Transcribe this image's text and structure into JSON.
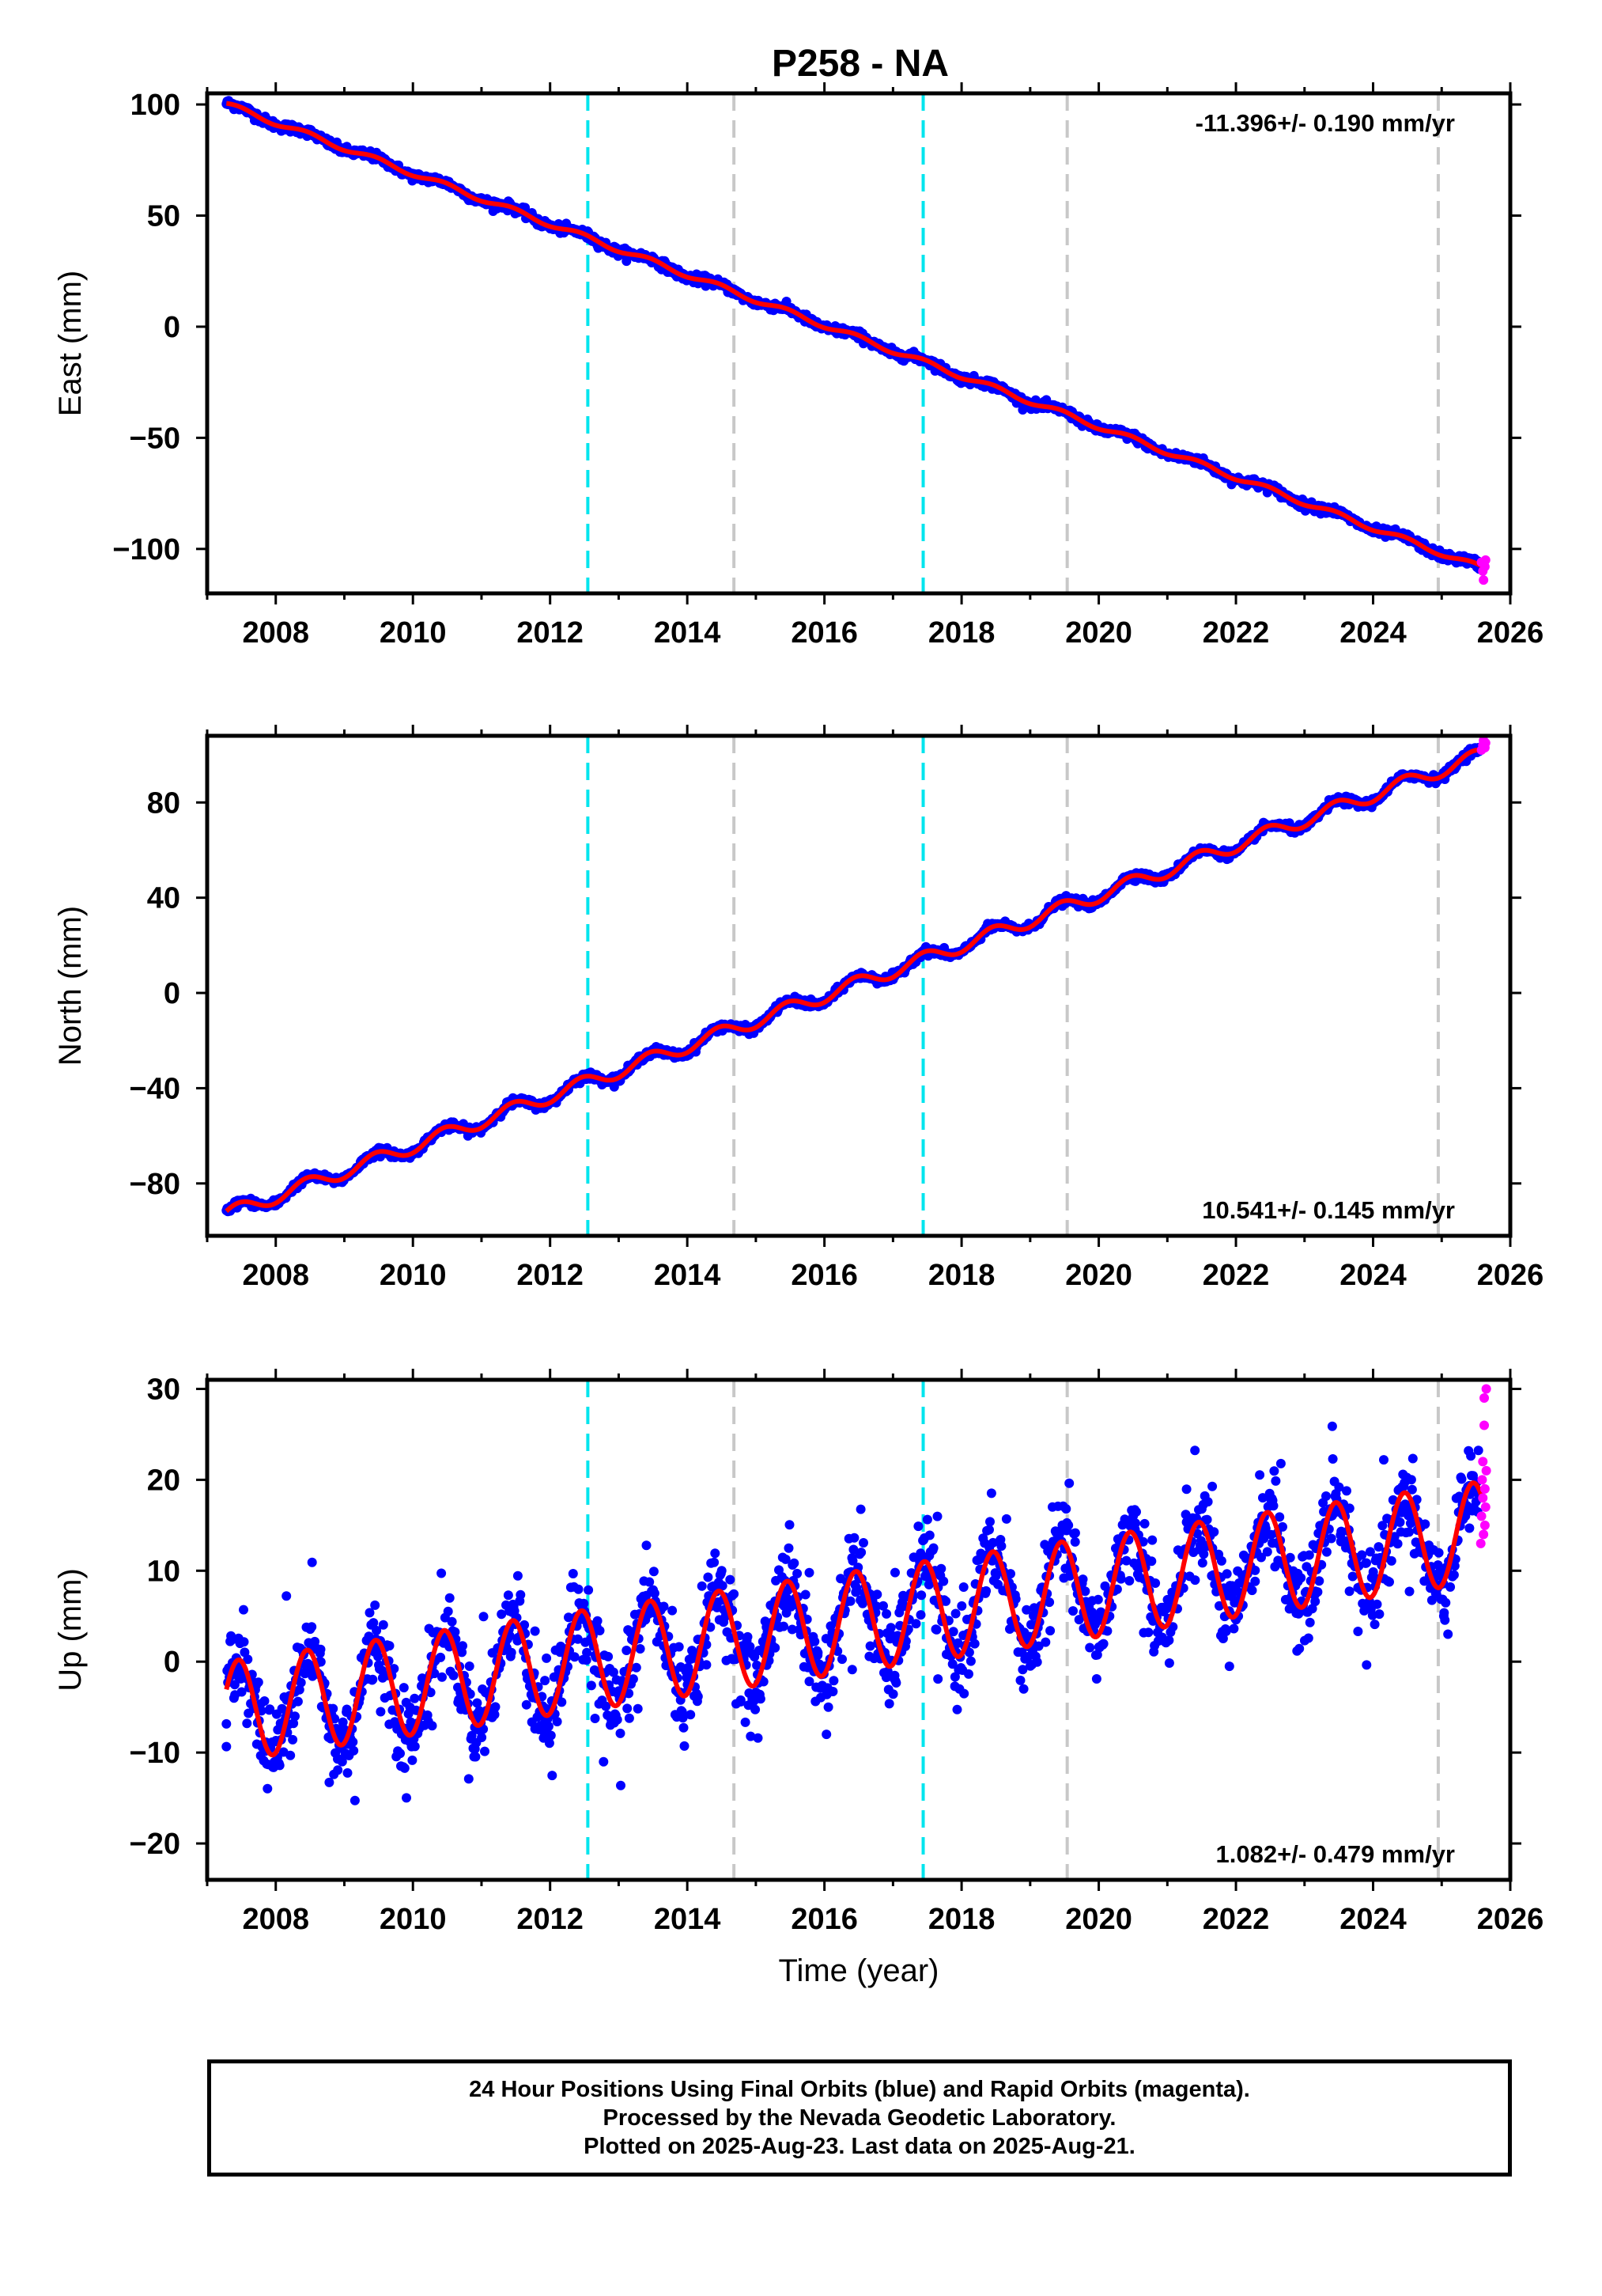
{
  "title": "P258 - NA",
  "colors": {
    "final": "#0000ff",
    "rapid": "#ff00ff",
    "model": "#ff0000",
    "equipment_change": "#00e5ee",
    "other_event": "#c8c8c8"
  },
  "footer": {
    "line1": "24 Hour Positions Using Final Orbits (blue) and Rapid Orbits (magenta).",
    "line2": "Processed by the Nevada Geodetic Laboratory.",
    "line3": "Plotted on 2025-Aug-23. Last data on 2025-Aug-21."
  },
  "chart_data": [
    {
      "type": "scatter",
      "component": "east",
      "ylabel": "East (mm)",
      "xlabel": "",
      "xlim": [
        2007.0,
        2026.0
      ],
      "ylim": [
        -120,
        105
      ],
      "xticks": [
        "2008",
        "2010",
        "2012",
        "2014",
        "2016",
        "2018",
        "2020",
        "2022",
        "2024",
        "2026"
      ],
      "yticks": [
        -100,
        -50,
        0,
        50,
        100
      ],
      "ytick_labels": [
        "−100",
        "−50",
        "0",
        "50",
        "100"
      ],
      "velocity_label": "-11.396+/- 0.190 mm/yr",
      "velocity_position": "top-right",
      "vertical_lines": [
        {
          "x": 2012.55,
          "style": "cyan-dashed"
        },
        {
          "x": 2014.68,
          "style": "gray-dashed"
        },
        {
          "x": 2017.44,
          "style": "cyan-dashed"
        },
        {
          "x": 2019.54,
          "style": "gray-dashed"
        },
        {
          "x": 2024.95,
          "style": "gray-dashed"
        }
      ],
      "start_year": 2007.28,
      "end_final_year": 2025.55,
      "start_value": 100,
      "rate_mm_per_yr": -11.396,
      "annual_amplitude": 1.2,
      "noise_mm": 1.8,
      "rapid_points": [
        {
          "x": 2025.58,
          "y": -106
        },
        {
          "x": 2025.6,
          "y": -110
        },
        {
          "x": 2025.61,
          "y": -114
        },
        {
          "x": 2025.63,
          "y": -108
        },
        {
          "x": 2025.64,
          "y": -105
        }
      ]
    },
    {
      "type": "scatter",
      "component": "north",
      "ylabel": "North (mm)",
      "xlabel": "",
      "xlim": [
        2007.0,
        2026.0
      ],
      "ylim": [
        -102,
        108
      ],
      "xticks": [
        "2008",
        "2010",
        "2012",
        "2014",
        "2016",
        "2018",
        "2020",
        "2022",
        "2024",
        "2026"
      ],
      "yticks": [
        -80,
        -40,
        0,
        40,
        80
      ],
      "ytick_labels": [
        "−80",
        "−40",
        "0",
        "40",
        "80"
      ],
      "velocity_label": "10.541+/- 0.145 mm/yr",
      "velocity_position": "bottom-right",
      "vertical_lines": [
        {
          "x": 2012.55,
          "style": "cyan-dashed"
        },
        {
          "x": 2014.68,
          "style": "gray-dashed"
        },
        {
          "x": 2017.44,
          "style": "cyan-dashed"
        },
        {
          "x": 2019.54,
          "style": "gray-dashed"
        },
        {
          "x": 2024.95,
          "style": "gray-dashed"
        }
      ],
      "start_year": 2007.28,
      "end_final_year": 2025.55,
      "start_value": -93,
      "rate_mm_per_yr": 10.541,
      "annual_amplitude": 3.0,
      "noise_mm": 1.5,
      "rapid_points": [
        {
          "x": 2025.58,
          "y": 102
        },
        {
          "x": 2025.6,
          "y": 104
        },
        {
          "x": 2025.61,
          "y": 106
        },
        {
          "x": 2025.63,
          "y": 103
        },
        {
          "x": 2025.64,
          "y": 105
        }
      ]
    },
    {
      "type": "scatter",
      "component": "up",
      "ylabel": "Up (mm)",
      "xlabel": "Time (year)",
      "xlim": [
        2007.0,
        2026.0
      ],
      "ylim": [
        -24,
        31
      ],
      "xticks": [
        "2008",
        "2010",
        "2012",
        "2014",
        "2016",
        "2018",
        "2020",
        "2022",
        "2024",
        "2026"
      ],
      "yticks": [
        -20,
        -10,
        0,
        10,
        20,
        30
      ],
      "ytick_labels": [
        "−20",
        "−10",
        "0",
        "10",
        "20",
        "30"
      ],
      "velocity_label": "1.082+/- 0.479 mm/yr",
      "velocity_position": "bottom-right",
      "vertical_lines": [
        {
          "x": 2012.55,
          "style": "cyan-dashed"
        },
        {
          "x": 2014.68,
          "style": "gray-dashed"
        },
        {
          "x": 2017.44,
          "style": "cyan-dashed"
        },
        {
          "x": 2019.54,
          "style": "gray-dashed"
        },
        {
          "x": 2024.95,
          "style": "gray-dashed"
        }
      ],
      "start_year": 2007.28,
      "end_final_year": 2025.55,
      "start_value": -5.5,
      "rate_mm_per_yr": 1.082,
      "annual_amplitude": 5.5,
      "noise_mm": 4.2,
      "rapid_points": [
        {
          "x": 2025.57,
          "y": 13
        },
        {
          "x": 2025.58,
          "y": 16
        },
        {
          "x": 2025.59,
          "y": 20
        },
        {
          "x": 2025.6,
          "y": 22
        },
        {
          "x": 2025.6,
          "y": 18
        },
        {
          "x": 2025.61,
          "y": 14
        },
        {
          "x": 2025.62,
          "y": 29
        },
        {
          "x": 2025.62,
          "y": 26
        },
        {
          "x": 2025.63,
          "y": 19
        },
        {
          "x": 2025.63,
          "y": 15
        },
        {
          "x": 2025.64,
          "y": 17
        },
        {
          "x": 2025.65,
          "y": 30
        },
        {
          "x": 2025.65,
          "y": 21
        }
      ]
    }
  ]
}
